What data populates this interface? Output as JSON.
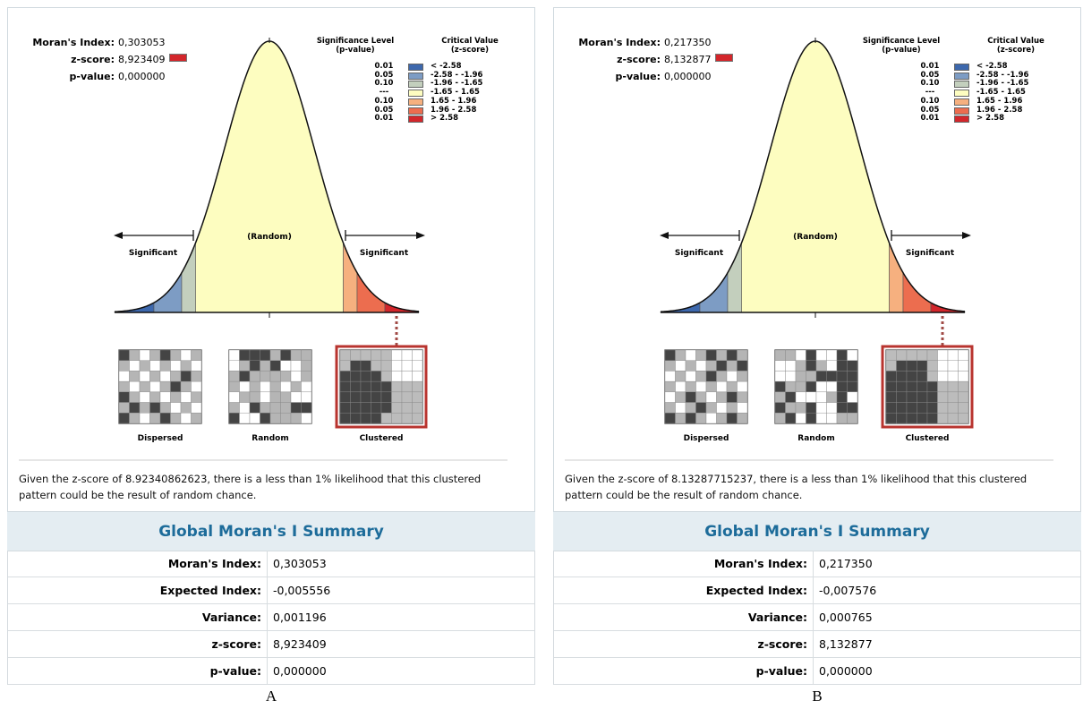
{
  "panels": [
    {
      "stats": [
        {
          "label": "Moran's Index:",
          "value": "0,303053"
        },
        {
          "label": "z-score:",
          "value": "8,923409"
        },
        {
          "label": "p-value:",
          "value": "0,000000"
        }
      ],
      "legend": {
        "headers": [
          [
            "Significance Level",
            "(p-value)"
          ],
          [
            "Critical Value",
            "(z-score)"
          ]
        ],
        "rows": [
          {
            "p": "0.01",
            "z": "< -2.58",
            "color": "#3d68ad"
          },
          {
            "p": "0.05",
            "z": "-2.58 - -1.96",
            "color": "#7d9cc4"
          },
          {
            "p": "0.10",
            "z": "-1.96 - -1.65",
            "color": "#c3cfbd"
          },
          {
            "p": "---",
            "z": "-1.65 - 1.65",
            "color": "#fdfdc0"
          },
          {
            "p": "0.10",
            "z": "1.65 - 1.96",
            "color": "#f6b07f"
          },
          {
            "p": "0.05",
            "z": "1.96 - 2.58",
            "color": "#ec6d4f"
          },
          {
            "p": "0.01",
            "z": "> 2.58",
            "color": "#d3262b"
          }
        ]
      },
      "curve_labels": {
        "left": "Significant",
        "center": "(Random)",
        "right": "Significant"
      },
      "maps": [
        "Dispersed",
        "Random",
        "Clustered"
      ],
      "description": "Given the z-score of 8.92340862623, there is a less than 1% likelihood that this clustered pattern could be the result of random chance.",
      "summary": {
        "title": "Global Moran's I Summary",
        "rows": [
          [
            "Moran's Index:",
            "0,303053"
          ],
          [
            "Expected Index:",
            "-0,005556"
          ],
          [
            "Variance:",
            "0,001196"
          ],
          [
            "z-score:",
            "8,923409"
          ],
          [
            "p-value:",
            "0,000000"
          ]
        ]
      },
      "caption": "A"
    },
    {
      "stats": [
        {
          "label": "Moran's Index:",
          "value": "0,217350"
        },
        {
          "label": "z-score:",
          "value": "8,132877"
        },
        {
          "label": "p-value:",
          "value": "0,000000"
        }
      ],
      "legend": {
        "headers": [
          [
            "Significance Level",
            "(p-value)"
          ],
          [
            "Critical Value",
            "(z-score)"
          ]
        ],
        "rows": [
          {
            "p": "0.01",
            "z": "< -2.58",
            "color": "#3d68ad"
          },
          {
            "p": "0.05",
            "z": "-2.58 - -1.96",
            "color": "#7d9cc4"
          },
          {
            "p": "0.10",
            "z": "-1.96 - -1.65",
            "color": "#c3cfbd"
          },
          {
            "p": "---",
            "z": "-1.65 - 1.65",
            "color": "#fdfdc0"
          },
          {
            "p": "0.10",
            "z": "1.65 - 1.96",
            "color": "#f6b07f"
          },
          {
            "p": "0.05",
            "z": "1.96 - 2.58",
            "color": "#ec6d4f"
          },
          {
            "p": "0.01",
            "z": "> 2.58",
            "color": "#d3262b"
          }
        ]
      },
      "curve_labels": {
        "left": "Significant",
        "center": "(Random)",
        "right": "Significant"
      },
      "maps": [
        "Dispersed",
        "Random",
        "Clustered"
      ],
      "description": "Given the z-score of 8.13287715237, there is a less than 1% likelihood that this clustered pattern could be the result of random chance.",
      "summary": {
        "title": "Global Moran's I Summary",
        "rows": [
          [
            "Moran's Index:",
            "0,217350"
          ],
          [
            "Expected Index:",
            "-0,007576"
          ],
          [
            "Variance:",
            "0,000765"
          ],
          [
            "z-score:",
            "8,132877"
          ],
          [
            "p-value:",
            "0,000000"
          ]
        ]
      },
      "caption": "B"
    }
  ]
}
